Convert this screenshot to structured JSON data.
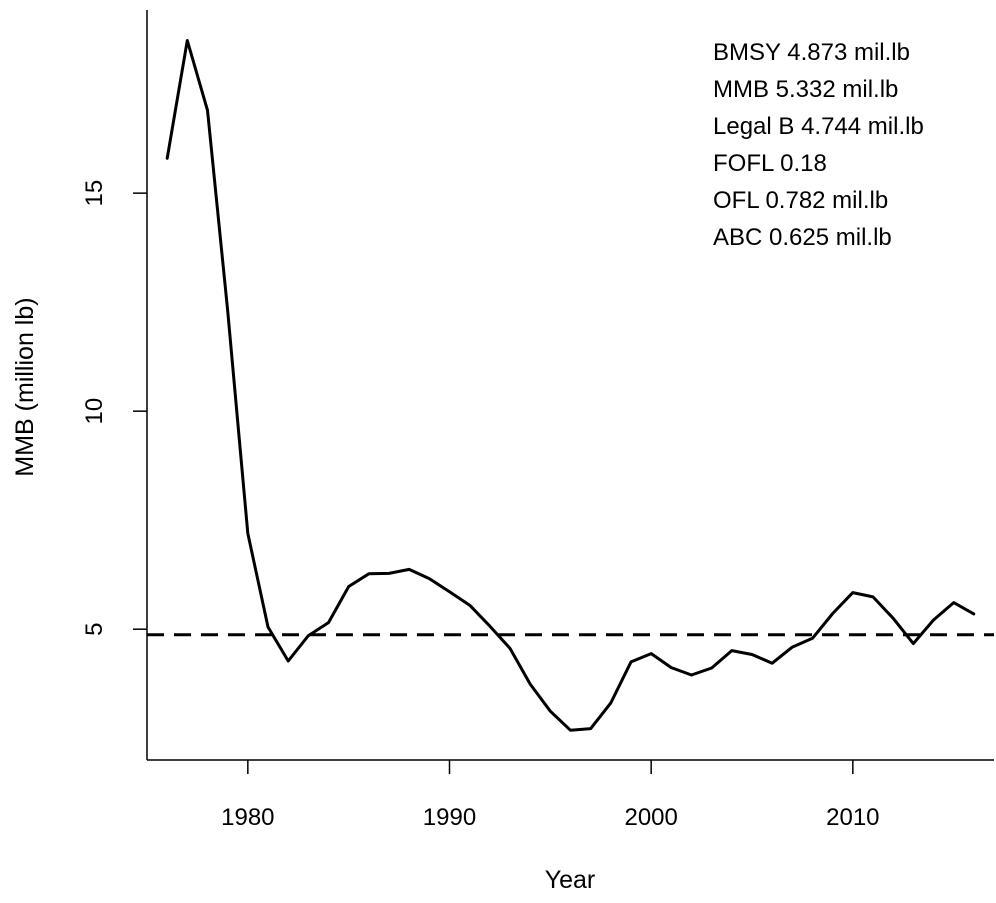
{
  "chart_data": {
    "type": "line",
    "title": "",
    "xlabel": "Year",
    "ylabel": "MMB (million lb)",
    "xlim": [
      1975,
      2017
    ],
    "ylim": [
      2.0,
      19.2
    ],
    "xticks": [
      1980,
      1990,
      2000,
      2010
    ],
    "yticks": [
      5,
      10,
      15
    ],
    "grid": false,
    "series": [
      {
        "x": [
          1976,
          1977,
          1978,
          1979,
          1980,
          1981,
          1982,
          1983,
          1984,
          1985,
          1986,
          1987,
          1988,
          1989,
          1990,
          1991,
          1992,
          1993,
          1994,
          1995,
          1996,
          1997,
          1998,
          1999,
          2000,
          2001,
          2002,
          2003,
          2004,
          2005,
          2006,
          2007,
          2008,
          2009,
          2010,
          2011,
          2012,
          2013,
          2014,
          2015,
          2016
        ],
        "y": [
          15.8,
          18.5,
          16.9,
          12.3,
          7.2,
          5.05,
          4.27,
          4.85,
          5.15,
          5.98,
          6.27,
          6.28,
          6.37,
          6.16,
          5.86,
          5.55,
          5.07,
          4.56,
          3.74,
          3.12,
          2.68,
          2.72,
          3.31,
          4.25,
          4.44,
          4.12,
          3.95,
          4.11,
          4.51,
          4.42,
          4.22,
          4.59,
          4.79,
          5.36,
          5.84,
          5.74,
          5.25,
          4.67,
          5.21,
          5.61,
          5.35
        ],
        "color": "#000000",
        "style": "solid"
      }
    ],
    "reference_lines": [
      {
        "axis": "y",
        "value": 4.873,
        "style": "dashed",
        "color": "#000000"
      }
    ],
    "annotations": [
      "BMSY  4.873  mil.lb",
      "MMB  5.332  mil.lb",
      "Legal B  4.744  mil.lb",
      "FOFL  0.18",
      "OFL  0.782  mil.lb",
      "ABC  0.625  mil.lb"
    ],
    "annotation_placement": "top-right"
  }
}
